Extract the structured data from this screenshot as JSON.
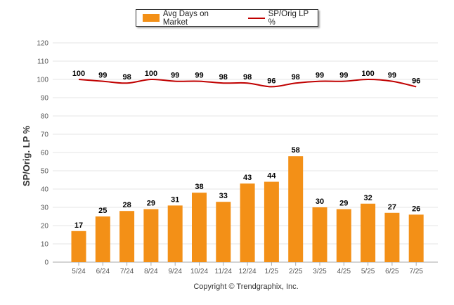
{
  "colors": {
    "bar": "#f39017",
    "line": "#c00000",
    "grid": "#e6e6e6",
    "axis": "#aaaaaa",
    "tick_text": "#555555",
    "label_text": "#000000"
  },
  "footer": {
    "copyright": "Copyright © Trendgraphix, Inc."
  },
  "chart_data": {
    "type": "bar",
    "ylabel": "SP/Orig. LP %",
    "ylim": [
      0,
      120
    ],
    "yticks": [
      0,
      10,
      20,
      30,
      40,
      50,
      60,
      70,
      80,
      90,
      100,
      110,
      120
    ],
    "grid": true,
    "legend_position": "top-center",
    "categories": [
      "5/24",
      "6/24",
      "7/24",
      "8/24",
      "9/24",
      "10/24",
      "11/24",
      "12/24",
      "1/25",
      "2/25",
      "3/25",
      "4/25",
      "5/25",
      "6/25",
      "7/25"
    ],
    "series": [
      {
        "name": "Avg Days on Market",
        "type": "bar",
        "values": [
          17,
          25,
          28,
          29,
          31,
          38,
          33,
          43,
          44,
          58,
          30,
          29,
          32,
          27,
          26
        ]
      },
      {
        "name": "SP/Orig LP %",
        "type": "line",
        "values": [
          100,
          99,
          98,
          100,
          99,
          99,
          98,
          98,
          96,
          98,
          99,
          99,
          100,
          99,
          96
        ]
      }
    ]
  }
}
